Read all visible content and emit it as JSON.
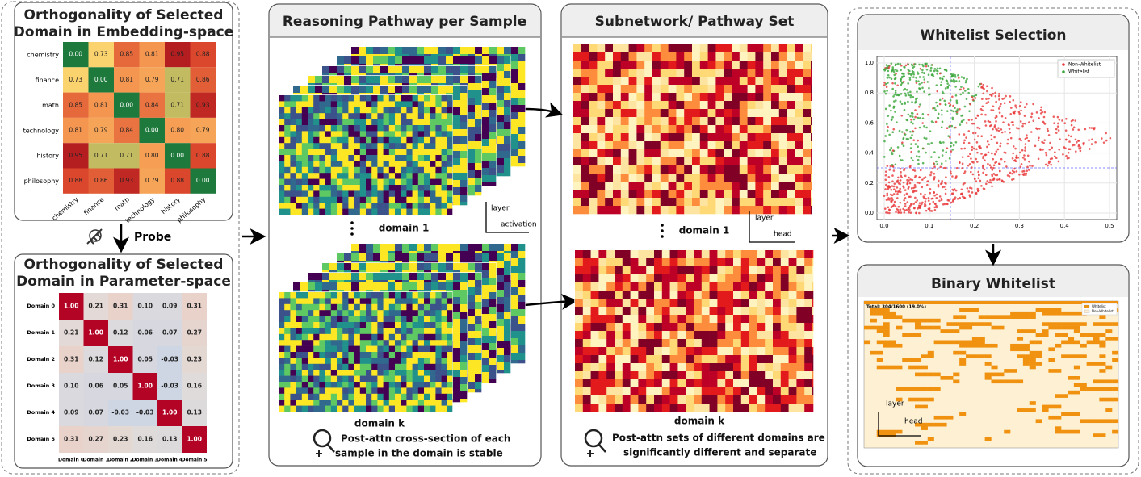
{
  "probe_label": "Probe",
  "embedding_panel": {
    "title": [
      "Orthogonality of Selected",
      "Domain in Embedding-space"
    ],
    "labels": [
      "chemistry",
      "finance",
      "math",
      "technology",
      "history",
      "philosophy"
    ],
    "matrix": [
      [
        "0.00",
        "0.73",
        "0.85",
        "0.81",
        "0.95",
        "0.88"
      ],
      [
        "0.73",
        "0.00",
        "0.81",
        "0.79",
        "0.71",
        "0.86"
      ],
      [
        "0.85",
        "0.81",
        "0.00",
        "0.84",
        "0.71",
        "0.93"
      ],
      [
        "0.81",
        "0.79",
        "0.84",
        "0.00",
        "0.80",
        "0.79"
      ],
      [
        "0.95",
        "0.71",
        "0.71",
        "0.80",
        "0.00",
        "0.88"
      ],
      [
        "0.88",
        "0.86",
        "0.93",
        "0.79",
        "0.88",
        "0.00"
      ]
    ]
  },
  "parameter_panel": {
    "title": [
      "Orthogonality of Selected",
      "Domain in ",
      "Parameter-space"
    ],
    "labels": [
      "Domain 0",
      "Domain 1",
      "Domain 2",
      "Domain 3",
      "Domain 4",
      "Domain 5"
    ],
    "matrix": [
      [
        "1.00",
        "0.21",
        "0.31",
        "0.10",
        "0.09",
        "0.31"
      ],
      [
        "0.21",
        "1.00",
        "0.12",
        "0.06",
        "0.07",
        "0.27"
      ],
      [
        "0.31",
        "0.12",
        "1.00",
        "0.05",
        "-0.03",
        "0.23"
      ],
      [
        "0.10",
        "0.06",
        "0.05",
        "1.00",
        "-0.03",
        "0.16"
      ],
      [
        "0.09",
        "0.07",
        "-0.03",
        "-0.03",
        "1.00",
        "0.13"
      ],
      [
        "0.31",
        "0.27",
        "0.23",
        "0.16",
        "0.13",
        "1.00"
      ]
    ]
  },
  "pathway_panel": {
    "title": "Reasoning Pathway per Sample",
    "domain_top": "domain 1",
    "domain_bottom": "domain k",
    "axis_y": "layer",
    "axis_x": "activation",
    "caption": [
      "Post-attn cross-section of each",
      "sample in the domain is stable"
    ]
  },
  "subnetwork_panel": {
    "title": "Subnetwork/ Pathway Set",
    "domain_top": "domain 1",
    "domain_bottom": "domain k",
    "axis_y": "layer",
    "axis_x": "head",
    "caption": [
      "Post-attn sets of different domains are",
      "significantly different and separate"
    ]
  },
  "whitelist_panel": {
    "title": "Whitelist Selection",
    "legend": [
      "Non-Whitelist",
      "Whitelist"
    ],
    "xticks": [
      "0.0",
      "0.1",
      "0.2",
      "0.3",
      "0.4",
      "0.5"
    ],
    "yticks": [
      "0.0",
      "0.2",
      "0.4",
      "0.6",
      "0.8",
      "1.0"
    ]
  },
  "binary_panel": {
    "title": "Binary Whitelist",
    "total": "Total: 304/1600 (19.0%)",
    "legend": [
      "Whitelist",
      "Non-Whitelist"
    ],
    "axis_y": "layer",
    "axis_x": "head"
  }
}
